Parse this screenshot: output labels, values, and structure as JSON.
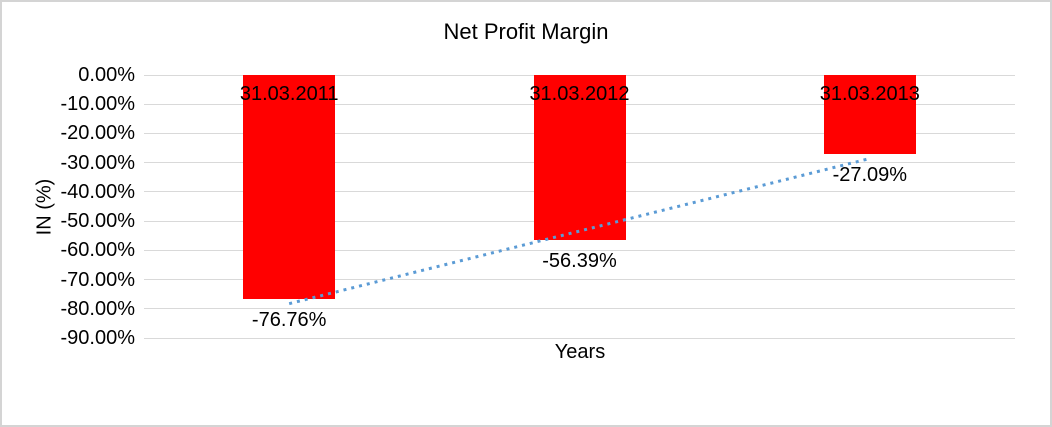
{
  "window": {
    "background": "#FFFFFF",
    "frame_border_color": "#D4D4D4"
  },
  "chart_data": {
    "type": "bar",
    "title": "Net Profit Margin",
    "xlabel": "Years",
    "ylabel": "IN (%)",
    "categories": [
      "31.03.2011",
      "31.03.2012",
      "31.03.2013"
    ],
    "values": [
      -76.76,
      -56.39,
      -27.09
    ],
    "value_labels": [
      "-76.76%",
      "-56.39%",
      "-27.09%"
    ],
    "y_tick_values": [
      0,
      -10,
      -20,
      -30,
      -40,
      -50,
      -60,
      -70,
      -80,
      -90
    ],
    "y_tick_labels": [
      "0.00%",
      "-10.00%",
      "-20.00%",
      "-30.00%",
      "-40.00%",
      "-50.00%",
      "-60.00%",
      "-70.00%",
      "-80.00%",
      "-90.00%"
    ],
    "ylim": [
      -90,
      0
    ],
    "grid": true,
    "legend": "none",
    "bar_color": "#FF0000",
    "text_color": "#000000",
    "gridline_color": "#D9D9D9",
    "trendline": {
      "type": "linear",
      "style": "dotted",
      "color": "#5B9BD5"
    }
  }
}
